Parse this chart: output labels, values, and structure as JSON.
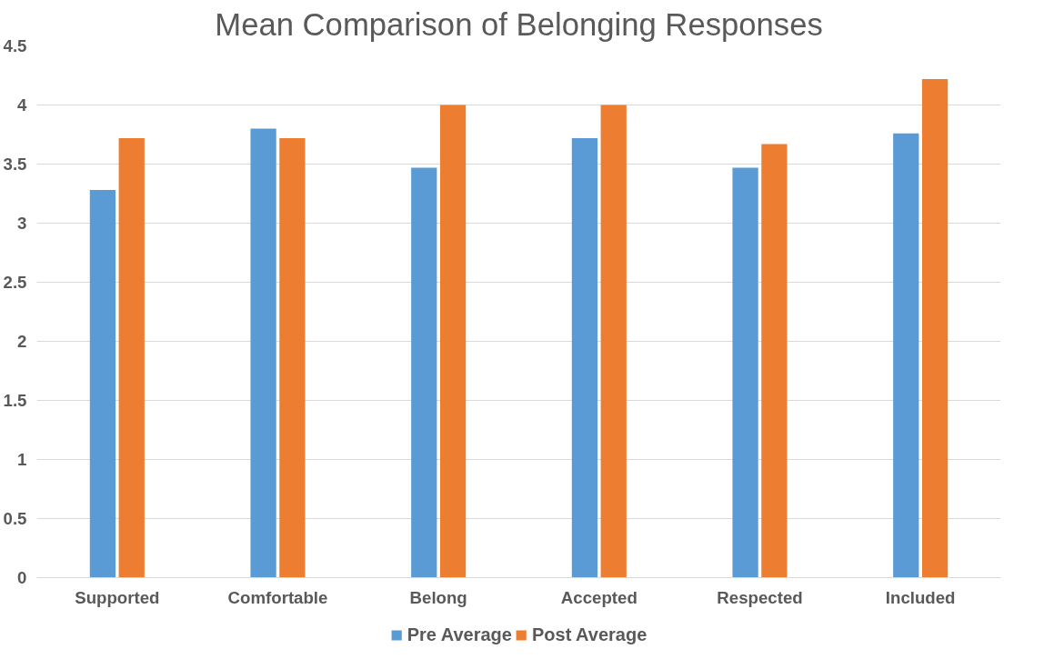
{
  "chart_data": {
    "type": "bar",
    "title": "Mean Comparison of Belonging Responses",
    "categories": [
      "Supported",
      "Comfortable",
      "Belong",
      "Accepted",
      "Respected",
      "Included"
    ],
    "series": [
      {
        "name": "Pre Average",
        "color": "#5b9bd5",
        "values": [
          3.28,
          3.8,
          3.47,
          3.72,
          3.47,
          3.76
        ]
      },
      {
        "name": "Post Average",
        "color": "#ed7d31",
        "values": [
          3.72,
          3.72,
          4.0,
          4.0,
          3.67,
          4.22
        ]
      }
    ],
    "ylim": [
      0,
      4.5
    ],
    "yticks": [
      0,
      0.5,
      1,
      1.5,
      2,
      2.5,
      3,
      3.5,
      4,
      4.5
    ],
    "grid": "y",
    "legend": "bottom"
  }
}
